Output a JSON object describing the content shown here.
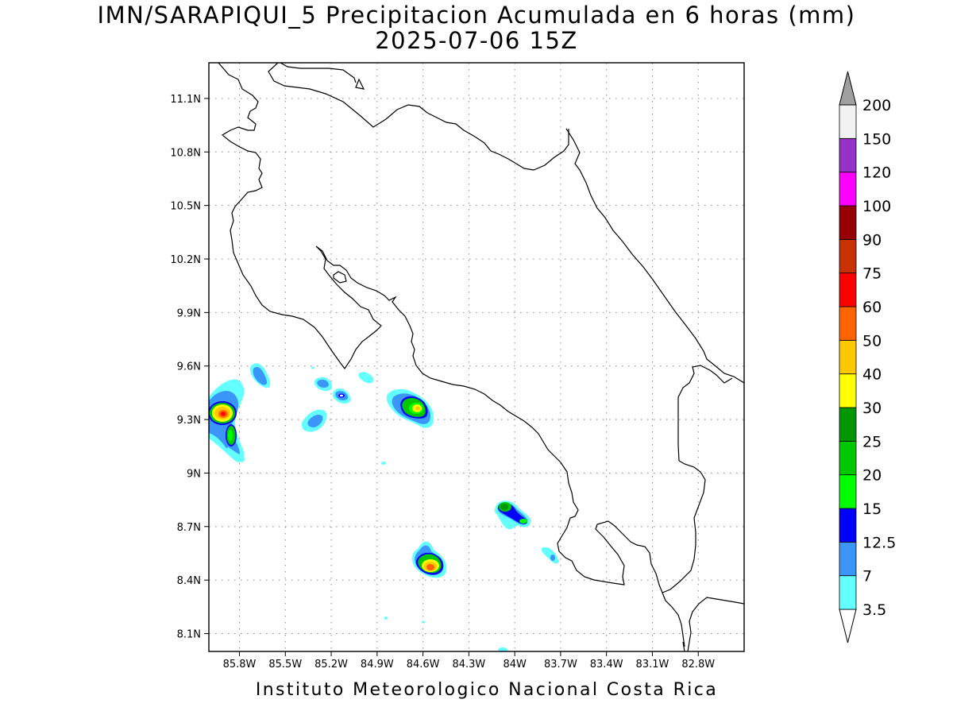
{
  "title": {
    "line1": "IMN/SARAPIQUI_5 Precipitacion Acumulada en 6 horas (mm)",
    "line2": "2025-07-06 15Z"
  },
  "footer": "Instituto Meteorologico Nacional Costa Rica",
  "map": {
    "lon_range": [
      -86.0,
      -82.5
    ],
    "lat_range": [
      8.0,
      11.3
    ],
    "lat_ticks": [
      {
        "value": 11.1,
        "label": "11.1N"
      },
      {
        "value": 10.8,
        "label": "10.8N"
      },
      {
        "value": 10.5,
        "label": "10.5N"
      },
      {
        "value": 10.2,
        "label": "10.2N"
      },
      {
        "value": 9.9,
        "label": "9.9N"
      },
      {
        "value": 9.6,
        "label": "9.6N"
      },
      {
        "value": 9.3,
        "label": "9.3N"
      },
      {
        "value": 9.0,
        "label": "9N"
      },
      {
        "value": 8.7,
        "label": "8.7N"
      },
      {
        "value": 8.4,
        "label": "8.4N"
      },
      {
        "value": 8.1,
        "label": "8.1N"
      }
    ],
    "lon_ticks": [
      {
        "value": -85.8,
        "label": "85.8W"
      },
      {
        "value": -85.5,
        "label": "85.5W"
      },
      {
        "value": -85.2,
        "label": "85.2W"
      },
      {
        "value": -84.9,
        "label": "84.9W"
      },
      {
        "value": -84.6,
        "label": "84.6W"
      },
      {
        "value": -84.3,
        "label": "84.3W"
      },
      {
        "value": -84.0,
        "label": "84W"
      },
      {
        "value": -83.7,
        "label": "83.7W"
      },
      {
        "value": -83.4,
        "label": "83.4W"
      },
      {
        "value": -83.1,
        "label": "83.1W"
      },
      {
        "value": -82.8,
        "label": "82.8W"
      }
    ],
    "grid": "dotted",
    "coastline_color": "#000000"
  },
  "colorbar": {
    "levels": [
      {
        "label": "3.5",
        "color": "#64ffff"
      },
      {
        "label": "7",
        "color": "#3c96fa"
      },
      {
        "label": "12.5",
        "color": "#0000ff"
      },
      {
        "label": "15",
        "color": "#00ff00"
      },
      {
        "label": "20",
        "color": "#00c800"
      },
      {
        "label": "25",
        "color": "#009600"
      },
      {
        "label": "30",
        "color": "#ffff00"
      },
      {
        "label": "40",
        "color": "#ffc800"
      },
      {
        "label": "50",
        "color": "#ff6400"
      },
      {
        "label": "60",
        "color": "#ff0000"
      },
      {
        "label": "75",
        "color": "#c83200"
      },
      {
        "label": "90",
        "color": "#960000"
      },
      {
        "label": "100",
        "color": "#ff00ff"
      },
      {
        "label": "120",
        "color": "#9632c8"
      },
      {
        "label": "150",
        "color": "#f2f2f2"
      },
      {
        "label": "200",
        "color": "#a0a0a0"
      }
    ]
  },
  "chart_data": {
    "type": "heatmap",
    "variable": "Precipitacion Acumulada en 6 horas (mm)",
    "xlim": [
      -86.0,
      -82.5
    ],
    "ylim": [
      8.0,
      11.3
    ],
    "precip_cells": [
      {
        "lon": -85.87,
        "lat": 9.34,
        "peak_mm": 45
      },
      {
        "lon": -85.82,
        "lat": 9.2,
        "peak_mm": 20
      },
      {
        "lon": -85.68,
        "lat": 9.56,
        "peak_mm": 7
      },
      {
        "lon": -85.34,
        "lat": 9.51,
        "peak_mm": 7
      },
      {
        "lon": -85.14,
        "lat": 9.43,
        "peak_mm": 12.5
      },
      {
        "lon": -85.38,
        "lat": 9.28,
        "peak_mm": 7
      },
      {
        "lon": -84.63,
        "lat": 9.37,
        "peak_mm": 30
      },
      {
        "lon": -84.55,
        "lat": 8.47,
        "peak_mm": 45
      },
      {
        "lon": -84.05,
        "lat": 8.8,
        "peak_mm": 25
      },
      {
        "lon": -83.95,
        "lat": 8.74,
        "peak_mm": 15
      },
      {
        "lon": -83.72,
        "lat": 8.53,
        "peak_mm": 7
      }
    ]
  }
}
